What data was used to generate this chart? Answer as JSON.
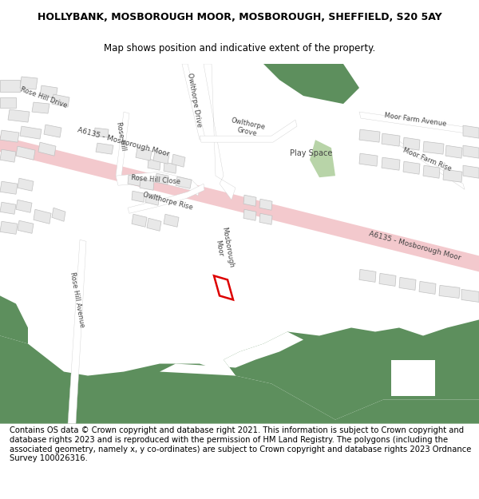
{
  "title_line1": "HOLLYBANK, MOSBOROUGH MOOR, MOSBOROUGH, SHEFFIELD, S20 5AY",
  "title_line2": "Map shows position and indicative extent of the property.",
  "footer": "Contains OS data © Crown copyright and database right 2021. This information is subject to Crown copyright and database rights 2023 and is reproduced with the permission of HM Land Registry. The polygons (including the associated geometry, namely x, y co-ordinates) are subject to Crown copyright and database rights 2023 Ordnance Survey 100026316.",
  "bg_color": "#ffffff",
  "map_bg": "#ffffff",
  "road_main_color": "#f2c4c8",
  "building_color": "#e8e8e8",
  "building_stroke": "#c8c8c8",
  "green_dark": "#5d8f5d",
  "green_light": "#b8d4a8",
  "plot_color": "#dd0000",
  "title_fontsize": 9,
  "subtitle_fontsize": 8.5,
  "footer_fontsize": 7.2,
  "label_fontsize": 6.5,
  "label_color": "#444444"
}
